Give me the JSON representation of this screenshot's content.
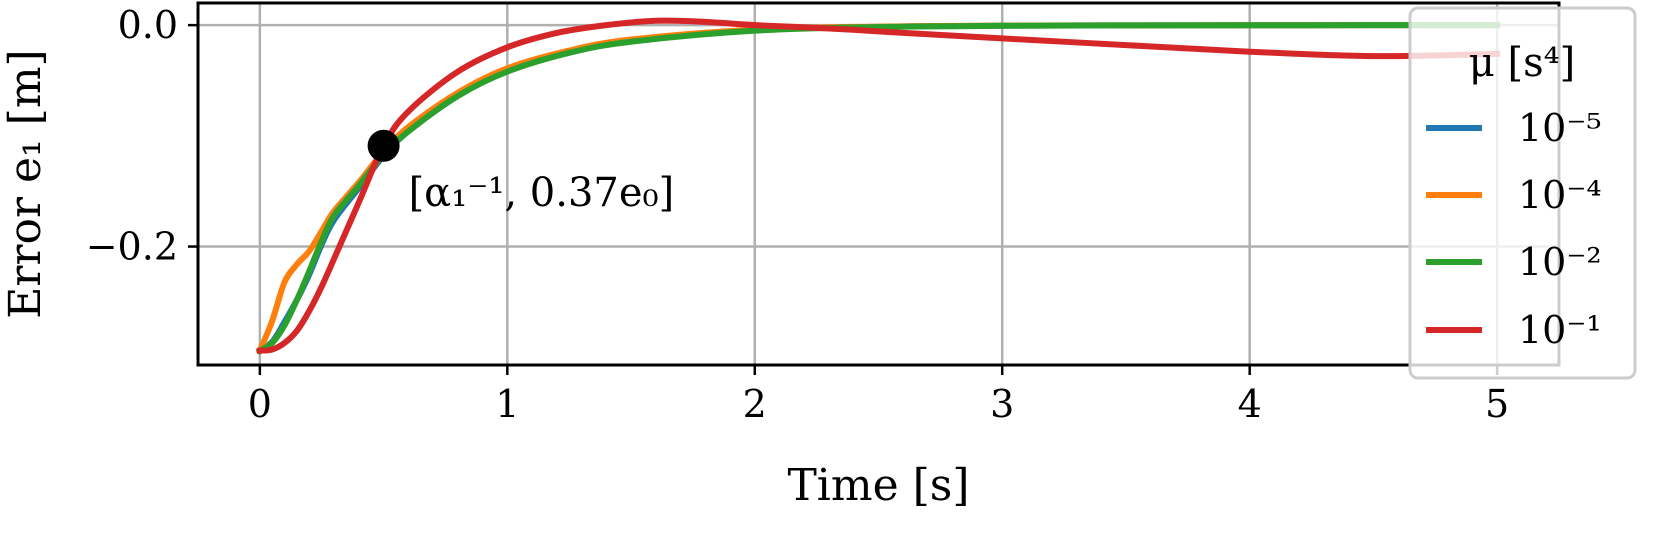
{
  "chart_data": {
    "type": "line",
    "xlabel": "Time [s]",
    "ylabel": "Error e₁ [m]",
    "xlim": [
      -0.25,
      5.25
    ],
    "ylim": [
      -0.307,
      0.02
    ],
    "xticks": [
      0,
      1,
      2,
      3,
      4,
      5
    ],
    "xtick_labels": [
      "0",
      "1",
      "2",
      "3",
      "4",
      "5"
    ],
    "yticks": [
      0.0,
      -0.2
    ],
    "ytick_labels": [
      "0.0",
      "−0.2"
    ],
    "grid": true,
    "legend": {
      "title": "μ [s⁴]",
      "placement": "right",
      "entries": [
        "10⁻⁵",
        "10⁻⁴",
        "10⁻²",
        "10⁻¹"
      ]
    },
    "colors": [
      "#1f77b4",
      "#ff7f0e",
      "#2ca02c",
      "#d62728"
    ],
    "series": [
      {
        "name": "10⁻⁵",
        "x": [
          0,
          0.05,
          0.1,
          0.15,
          0.2,
          0.25,
          0.3,
          0.4,
          0.5,
          0.6,
          0.8,
          1.0,
          1.25,
          1.5,
          2.0,
          2.5,
          3.0,
          3.5,
          4.0,
          4.5,
          5.0
        ],
        "y": [
          -0.294,
          -0.286,
          -0.268,
          -0.248,
          -0.225,
          -0.198,
          -0.176,
          -0.147,
          -0.118,
          -0.096,
          -0.064,
          -0.041,
          -0.024,
          -0.014,
          -0.0045,
          -0.0015,
          -0.0005,
          -0.0002,
          -0.0001,
          0.0,
          0.0
        ]
      },
      {
        "name": "10⁻⁴",
        "x": [
          0,
          0.05,
          0.1,
          0.15,
          0.2,
          0.25,
          0.3,
          0.4,
          0.5,
          0.6,
          0.8,
          1.0,
          1.25,
          1.5,
          2.0,
          2.5,
          3.0,
          3.5,
          4.0,
          4.5,
          5.0
        ],
        "y": [
          -0.294,
          -0.267,
          -0.232,
          -0.216,
          -0.204,
          -0.186,
          -0.168,
          -0.142,
          -0.114,
          -0.092,
          -0.061,
          -0.039,
          -0.023,
          -0.013,
          -0.004,
          -0.0013,
          -0.0004,
          -0.0002,
          -0.0001,
          0.0,
          0.0
        ]
      },
      {
        "name": "10⁻²",
        "x": [
          0,
          0.05,
          0.1,
          0.15,
          0.2,
          0.25,
          0.3,
          0.4,
          0.5,
          0.6,
          0.8,
          1.0,
          1.25,
          1.5,
          2.0,
          2.5,
          3.0,
          3.5,
          4.0,
          4.5,
          5.0
        ],
        "y": [
          -0.294,
          -0.287,
          -0.271,
          -0.248,
          -0.222,
          -0.195,
          -0.172,
          -0.145,
          -0.117,
          -0.096,
          -0.064,
          -0.042,
          -0.025,
          -0.015,
          -0.005,
          -0.0017,
          -0.0006,
          -0.0002,
          -0.0001,
          0.0,
          0.0
        ]
      },
      {
        "name": "10⁻¹",
        "x": [
          0,
          0.05,
          0.1,
          0.15,
          0.2,
          0.25,
          0.3,
          0.4,
          0.5,
          0.6,
          0.8,
          1.0,
          1.2,
          1.4,
          1.6,
          1.8,
          2.0,
          2.3,
          2.6,
          3.0,
          3.5,
          4.0,
          4.5,
          5.0
        ],
        "y": [
          -0.294,
          -0.293,
          -0.287,
          -0.276,
          -0.258,
          -0.236,
          -0.211,
          -0.16,
          -0.109,
          -0.078,
          -0.042,
          -0.02,
          -0.007,
          0.0,
          0.004,
          0.003,
          0.0,
          -0.003,
          -0.007,
          -0.012,
          -0.018,
          -0.024,
          -0.028,
          -0.026
        ]
      }
    ],
    "annotation": {
      "label": "[α₁⁻¹, 0.37e₀]",
      "x": 0.5,
      "y": -0.109
    }
  }
}
